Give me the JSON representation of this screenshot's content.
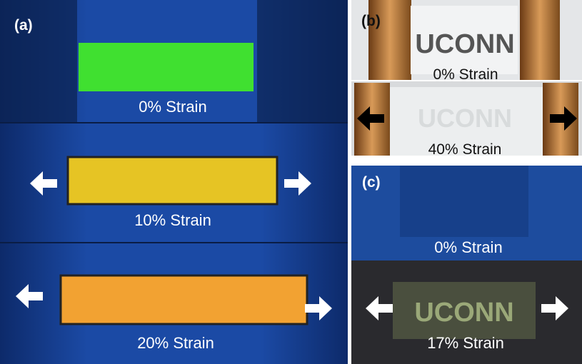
{
  "panels": [
    {
      "label": "(a)",
      "frames": [
        {
          "caption": "0% Strain"
        },
        {
          "caption": "10% Strain"
        },
        {
          "caption": "20% Strain"
        }
      ]
    },
    {
      "label": "(b)",
      "frames": [
        {
          "text": "UCONN",
          "caption": "0% Strain"
        },
        {
          "text": "UCONN",
          "caption": "40% Strain"
        }
      ]
    },
    {
      "label": "(c)",
      "frames": [
        {
          "caption": "0% Strain"
        },
        {
          "text": "UCONN",
          "caption": "17% Strain"
        }
      ]
    }
  ]
}
